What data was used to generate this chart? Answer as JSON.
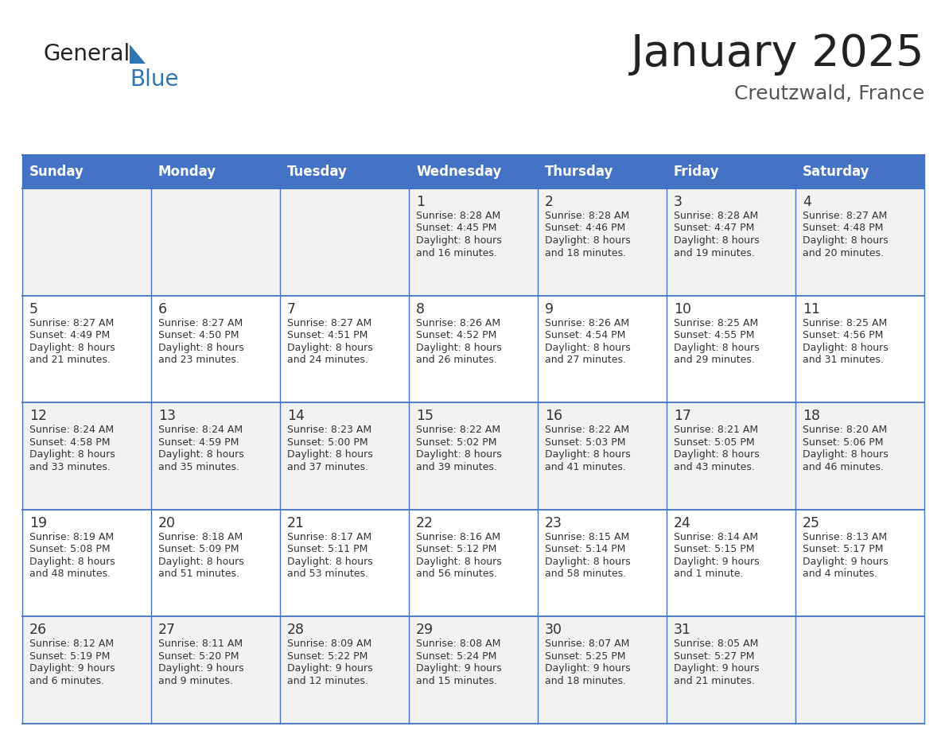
{
  "title": "January 2025",
  "subtitle": "Creutzwald, France",
  "header_bg": "#4472C4",
  "header_text_color": "#FFFFFF",
  "day_names": [
    "Sunday",
    "Monday",
    "Tuesday",
    "Wednesday",
    "Thursday",
    "Friday",
    "Saturday"
  ],
  "row_bg_odd": "#F2F2F2",
  "row_bg_even": "#FFFFFF",
  "cell_text_color": "#333333",
  "day_num_color": "#333333",
  "title_color": "#222222",
  "subtitle_color": "#555555",
  "logo_general_color": "#222222",
  "logo_blue_color": "#2E75B6",
  "grid_line_color": "#4472C4",
  "weeks": [
    {
      "days": [
        {
          "date": "",
          "sunrise": "",
          "sunset": "",
          "daylight": ""
        },
        {
          "date": "",
          "sunrise": "",
          "sunset": "",
          "daylight": ""
        },
        {
          "date": "",
          "sunrise": "",
          "sunset": "",
          "daylight": ""
        },
        {
          "date": "1",
          "sunrise": "8:28 AM",
          "sunset": "4:45 PM",
          "daylight": "8 hours and 16 minutes."
        },
        {
          "date": "2",
          "sunrise": "8:28 AM",
          "sunset": "4:46 PM",
          "daylight": "8 hours and 18 minutes."
        },
        {
          "date": "3",
          "sunrise": "8:28 AM",
          "sunset": "4:47 PM",
          "daylight": "8 hours and 19 minutes."
        },
        {
          "date": "4",
          "sunrise": "8:27 AM",
          "sunset": "4:48 PM",
          "daylight": "8 hours and 20 minutes."
        }
      ]
    },
    {
      "days": [
        {
          "date": "5",
          "sunrise": "8:27 AM",
          "sunset": "4:49 PM",
          "daylight": "8 hours and 21 minutes."
        },
        {
          "date": "6",
          "sunrise": "8:27 AM",
          "sunset": "4:50 PM",
          "daylight": "8 hours and 23 minutes."
        },
        {
          "date": "7",
          "sunrise": "8:27 AM",
          "sunset": "4:51 PM",
          "daylight": "8 hours and 24 minutes."
        },
        {
          "date": "8",
          "sunrise": "8:26 AM",
          "sunset": "4:52 PM",
          "daylight": "8 hours and 26 minutes."
        },
        {
          "date": "9",
          "sunrise": "8:26 AM",
          "sunset": "4:54 PM",
          "daylight": "8 hours and 27 minutes."
        },
        {
          "date": "10",
          "sunrise": "8:25 AM",
          "sunset": "4:55 PM",
          "daylight": "8 hours and 29 minutes."
        },
        {
          "date": "11",
          "sunrise": "8:25 AM",
          "sunset": "4:56 PM",
          "daylight": "8 hours and 31 minutes."
        }
      ]
    },
    {
      "days": [
        {
          "date": "12",
          "sunrise": "8:24 AM",
          "sunset": "4:58 PM",
          "daylight": "8 hours and 33 minutes."
        },
        {
          "date": "13",
          "sunrise": "8:24 AM",
          "sunset": "4:59 PM",
          "daylight": "8 hours and 35 minutes."
        },
        {
          "date": "14",
          "sunrise": "8:23 AM",
          "sunset": "5:00 PM",
          "daylight": "8 hours and 37 minutes."
        },
        {
          "date": "15",
          "sunrise": "8:22 AM",
          "sunset": "5:02 PM",
          "daylight": "8 hours and 39 minutes."
        },
        {
          "date": "16",
          "sunrise": "8:22 AM",
          "sunset": "5:03 PM",
          "daylight": "8 hours and 41 minutes."
        },
        {
          "date": "17",
          "sunrise": "8:21 AM",
          "sunset": "5:05 PM",
          "daylight": "8 hours and 43 minutes."
        },
        {
          "date": "18",
          "sunrise": "8:20 AM",
          "sunset": "5:06 PM",
          "daylight": "8 hours and 46 minutes."
        }
      ]
    },
    {
      "days": [
        {
          "date": "19",
          "sunrise": "8:19 AM",
          "sunset": "5:08 PM",
          "daylight": "8 hours and 48 minutes."
        },
        {
          "date": "20",
          "sunrise": "8:18 AM",
          "sunset": "5:09 PM",
          "daylight": "8 hours and 51 minutes."
        },
        {
          "date": "21",
          "sunrise": "8:17 AM",
          "sunset": "5:11 PM",
          "daylight": "8 hours and 53 minutes."
        },
        {
          "date": "22",
          "sunrise": "8:16 AM",
          "sunset": "5:12 PM",
          "daylight": "8 hours and 56 minutes."
        },
        {
          "date": "23",
          "sunrise": "8:15 AM",
          "sunset": "5:14 PM",
          "daylight": "8 hours and 58 minutes."
        },
        {
          "date": "24",
          "sunrise": "8:14 AM",
          "sunset": "5:15 PM",
          "daylight": "9 hours and 1 minute."
        },
        {
          "date": "25",
          "sunrise": "8:13 AM",
          "sunset": "5:17 PM",
          "daylight": "9 hours and 4 minutes."
        }
      ]
    },
    {
      "days": [
        {
          "date": "26",
          "sunrise": "8:12 AM",
          "sunset": "5:19 PM",
          "daylight": "9 hours and 6 minutes."
        },
        {
          "date": "27",
          "sunrise": "8:11 AM",
          "sunset": "5:20 PM",
          "daylight": "9 hours and 9 minutes."
        },
        {
          "date": "28",
          "sunrise": "8:09 AM",
          "sunset": "5:22 PM",
          "daylight": "9 hours and 12 minutes."
        },
        {
          "date": "29",
          "sunrise": "8:08 AM",
          "sunset": "5:24 PM",
          "daylight": "9 hours and 15 minutes."
        },
        {
          "date": "30",
          "sunrise": "8:07 AM",
          "sunset": "5:25 PM",
          "daylight": "9 hours and 18 minutes."
        },
        {
          "date": "31",
          "sunrise": "8:05 AM",
          "sunset": "5:27 PM",
          "daylight": "9 hours and 21 minutes."
        },
        {
          "date": "",
          "sunrise": "",
          "sunset": "",
          "daylight": ""
        }
      ]
    }
  ]
}
